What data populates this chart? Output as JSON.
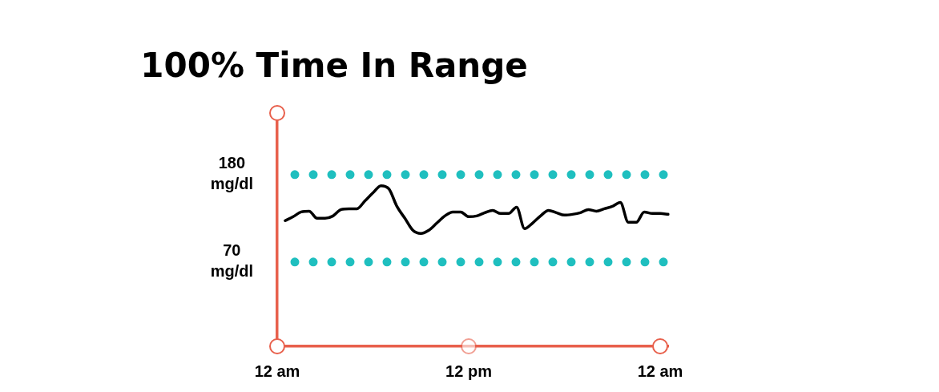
{
  "chart_data": {
    "type": "line",
    "title": "100% Time In Range",
    "categories": [
      "12 am",
      null,
      null,
      null,
      null,
      null,
      null,
      null,
      null,
      null,
      null,
      null,
      null,
      null,
      null,
      null,
      null,
      null,
      null,
      null,
      null,
      null,
      null,
      null,
      "12 pm",
      null,
      null,
      null,
      null,
      null,
      null,
      null,
      null,
      null,
      null,
      null,
      null,
      null,
      null,
      null,
      null,
      null,
      null,
      null,
      null,
      null,
      null,
      null,
      "12 am",
      null
    ],
    "series": [
      {
        "color": "#000000",
        "values": [
          null,
          122,
          127,
          133,
          134,
          125,
          125,
          128,
          136,
          137,
          137,
          147,
          157,
          166,
          162,
          140,
          125,
          110,
          106,
          110,
          119,
          128,
          133,
          133,
          127,
          128,
          132,
          135,
          131,
          131,
          139,
          112,
          119,
          128,
          135,
          132,
          129,
          130,
          132,
          136,
          134,
          137,
          140,
          145,
          120,
          120,
          133,
          131,
          131,
          130
        ]
      }
    ],
    "ylim": [
      -36,
      257
    ],
    "yticks": [
      {
        "value": 70,
        "label": "70 mg/dl"
      },
      {
        "value": 180,
        "label": "180 mg/dl"
      }
    ],
    "ref_lines": [
      {
        "axis": "y",
        "value": 180,
        "color": "#1fbfbf",
        "line_style": "dotted"
      },
      {
        "axis": "y",
        "value": 70,
        "color": "#1fbfbf",
        "line_style": "dotted"
      }
    ],
    "grid": false,
    "legend": false,
    "marker": "none",
    "line_style": "solid"
  }
}
